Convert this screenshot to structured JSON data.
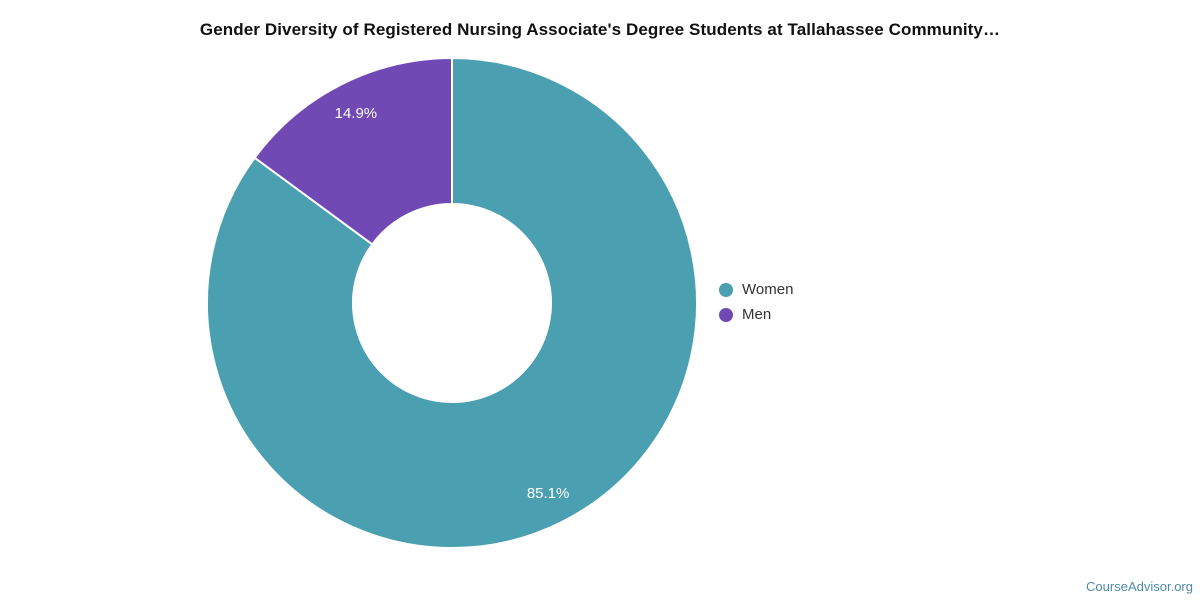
{
  "chart_data": {
    "type": "pie",
    "subtype": "donut",
    "title": "Gender Diversity of Registered Nursing Associate's Degree Students at Tallahassee Community…",
    "labels": [
      "Women",
      "Men"
    ],
    "values": [
      85.1,
      14.9
    ],
    "value_labels": [
      "85.1%",
      "14.9%"
    ],
    "colors": [
      "#4A9FB0",
      "#7149B4"
    ],
    "slice_border_color": "#FFFFFF",
    "start_position": "12-oclock",
    "direction": "clockwise",
    "legend_position": "right"
  },
  "legend": {
    "items": [
      {
        "label": "Women",
        "color": "#4A9FB0"
      },
      {
        "label": "Men",
        "color": "#7149B4"
      }
    ]
  },
  "title_color": "#111111",
  "watermark": {
    "text": "CourseAdvisor.org",
    "color": "#4B8CAA"
  }
}
